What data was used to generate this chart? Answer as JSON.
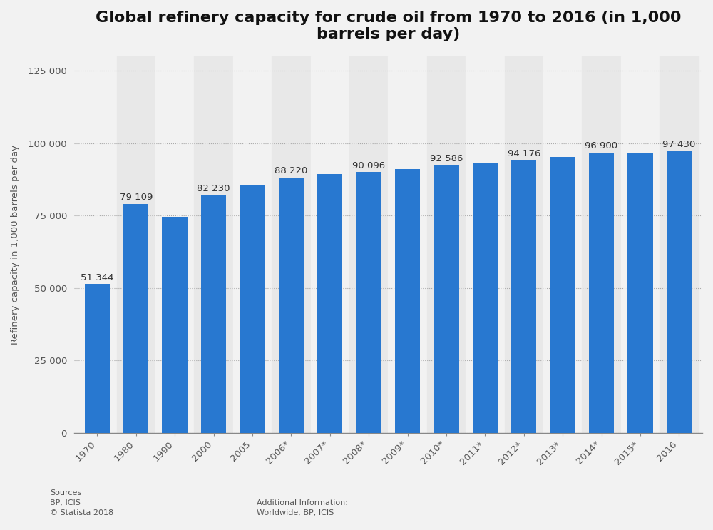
{
  "title": "Global refinery capacity for crude oil from 1970 to 2016 (in 1,000\nbarrels per day)",
  "ylabel": "Refinery capacity in 1,000 barrels per day",
  "categories": [
    "1970",
    "1980",
    "1990",
    "2000",
    "2005",
    "2006*",
    "2007*",
    "2008*",
    "2009*",
    "2010*",
    "2011*",
    "2012*",
    "2013*",
    "2014*",
    "2015*",
    "2016"
  ],
  "values": [
    51344,
    79109,
    74700,
    82230,
    85500,
    88220,
    89500,
    90096,
    91200,
    92586,
    93000,
    94176,
    95200,
    96900,
    96500,
    97430
  ],
  "bar_color": "#2878d0",
  "bar_labels": [
    "51 344",
    "79 109",
    "",
    "82 230",
    "",
    "88 220",
    "",
    "90 096",
    "",
    "92 586",
    "",
    "94 176",
    "",
    "96 900",
    "",
    "97 430"
  ],
  "ylim": [
    0,
    130000
  ],
  "yticks": [
    0,
    25000,
    50000,
    75000,
    100000,
    125000
  ],
  "ytick_labels": [
    "0",
    "25 000",
    "50 000",
    "75 000",
    "100 000",
    "125 000"
  ],
  "background_color": "#f2f2f2",
  "plot_background_light": "#f2f2f2",
  "plot_background_dark": "#e8e8e8",
  "title_fontsize": 16,
  "label_fontsize": 9.5,
  "ylabel_fontsize": 9.5,
  "sources_text": "Sources\nBP; ICIS\n© Statista 2018",
  "additional_text": "Additional Information:\nWorldwide; BP; ICIS",
  "stripe_indices": [
    1,
    3,
    5,
    7,
    9,
    11,
    13,
    15
  ]
}
